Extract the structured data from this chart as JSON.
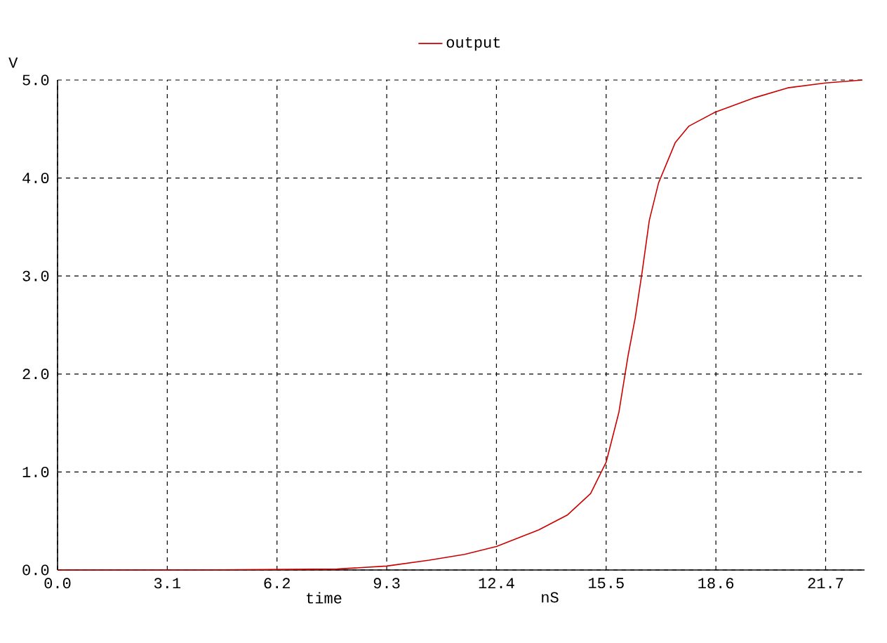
{
  "chart_data": {
    "type": "line",
    "xlabel": "time",
    "ylabel": "V",
    "annotations": [
      "nS"
    ],
    "x": [
      0,
      4,
      7.9,
      9.3,
      10.5,
      11.5,
      12.4,
      13.6,
      14.4,
      15.06,
      15.5,
      15.86,
      16.12,
      16.32,
      16.52,
      16.72,
      16.98,
      17.45,
      17.84,
      18.57,
      19.7,
      20.63,
      21.69,
      22.74
    ],
    "series": [
      {
        "name": "output",
        "color": "#cc0000",
        "values": [
          0,
          0,
          0.01,
          0.04,
          0.1,
          0.16,
          0.24,
          0.41,
          0.56,
          0.78,
          1.1,
          1.61,
          2.19,
          2.57,
          3.05,
          3.57,
          3.95,
          4.36,
          4.53,
          4.67,
          4.82,
          4.92,
          4.97,
          5.0
        ]
      }
    ],
    "xlim": [
      0,
      22.8
    ],
    "ylim": [
      0,
      5.0
    ],
    "xticks": [
      {
        "value": 0,
        "label": "0.0"
      },
      3.1,
      6.2,
      9.3,
      12.4,
      15.5,
      18.6,
      21.7
    ],
    "yticks": [
      {
        "value": 0,
        "label": "0.0"
      },
      {
        "value": 1,
        "label": "1.0"
      },
      {
        "value": 2,
        "label": "2.0"
      },
      {
        "value": 3,
        "label": "3.0"
      },
      {
        "value": 4,
        "label": "4.0"
      },
      {
        "value": 5,
        "label": "5.0"
      }
    ],
    "grid": true,
    "legend": "top",
    "marker": "none",
    "line_style": "solid"
  }
}
